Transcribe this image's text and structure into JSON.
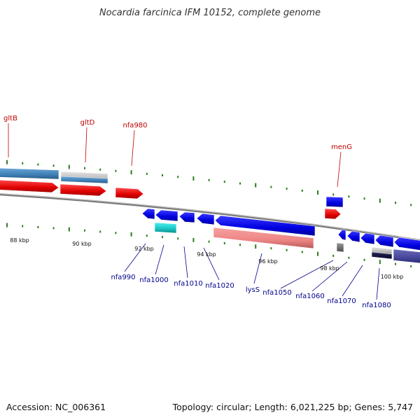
{
  "title": "Nocardia farcinica IFM 10152, complete genome",
  "footer": {
    "accession": "Accession: NC_006361",
    "summary": "Topology: circular; Length: 6,021,225 bp; Genes: 5,747"
  },
  "tick_labels": [
    "88 kbp",
    "90 kbp",
    "92 kbp",
    "94 kbp",
    "96 kbp",
    "98 kbp",
    "100 kbp"
  ],
  "top_gene_labels": [
    "gltB",
    "gltD",
    "nfa980",
    "menG"
  ],
  "bottom_gene_labels": [
    "nfa990",
    "nfa1000",
    "nfa1010",
    "nfa1020",
    "lysS",
    "nfa1050",
    "nfa1060",
    "nfa1070",
    "nfa1080"
  ],
  "colors": {
    "backbone": "#8a8a8a",
    "tick": "#2e7d1f",
    "red_gene": "#ee0000",
    "blue_gene": "#0000ee",
    "steel_gene": "#4a86b8",
    "cyan_gene": "#20c8c8",
    "salmon_gene": "#f08888",
    "navy_gene": "#4a4a9a",
    "gray_gene": "#c0c0c0",
    "label_top": "#c00000",
    "label_bottom": "#00008b"
  }
}
